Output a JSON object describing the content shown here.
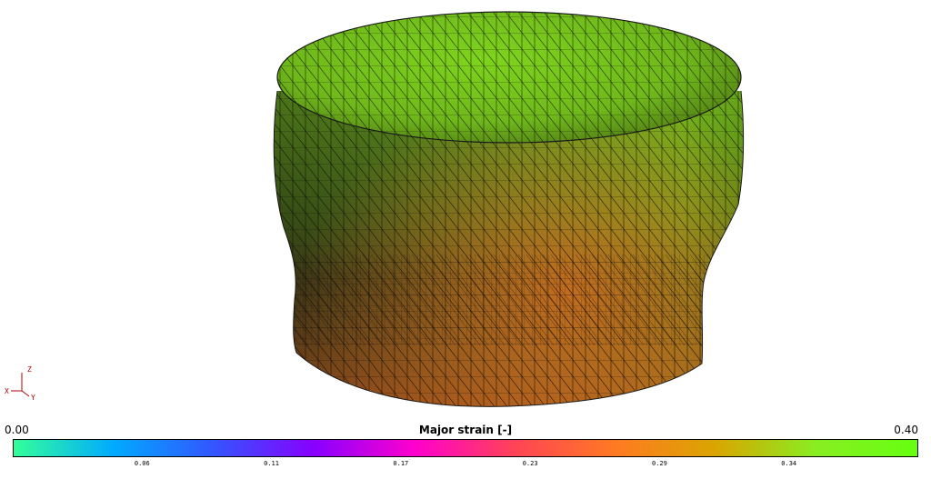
{
  "legend": {
    "title": "Major strain [-]",
    "min_label": "0.00",
    "max_label": "0.40",
    "ticks": [
      "0.06",
      "0.11",
      "0.17",
      "0.23",
      "0.29",
      "0.34"
    ],
    "gradient_colors": [
      "#33ff99",
      "#00aaff",
      "#3355ff",
      "#8800ff",
      "#ff00cc",
      "#ff4455",
      "#ff7a22",
      "#d9a600",
      "#88ee22",
      "#66ff11"
    ]
  },
  "axes": {
    "x_label": "X",
    "y_label": "Y",
    "z_label": "Z"
  }
}
